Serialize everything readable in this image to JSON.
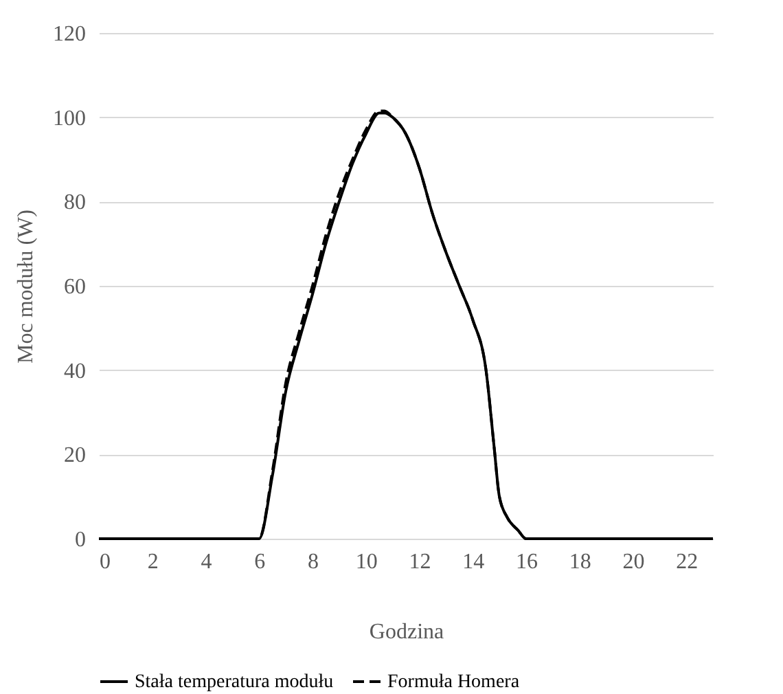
{
  "chart_data": {
    "type": "line",
    "xlabel": "Godzina",
    "ylabel": "Moc modułu (W)",
    "xlim": [
      0,
      23
    ],
    "xticks": [
      0,
      2,
      4,
      6,
      8,
      10,
      12,
      14,
      16,
      18,
      20,
      22
    ],
    "ylim": [
      0,
      120
    ],
    "yticks": [
      0,
      20,
      40,
      60,
      80,
      100,
      120
    ],
    "grid": "y",
    "legend": "bottom",
    "marker": "none",
    "x": [
      0,
      1,
      2,
      3,
      4,
      5,
      5.5,
      5.8,
      6,
      6.5,
      7,
      7.5,
      8,
      8.5,
      9,
      9.5,
      10,
      10.5,
      10.7,
      11,
      11.5,
      12,
      12.5,
      13,
      13.5,
      14,
      14.5,
      14.8,
      15,
      15.3,
      15.7,
      16,
      16.3,
      16.6,
      17,
      18,
      19,
      20,
      21,
      22,
      23
    ],
    "series": [
      {
        "name": "Stała temperatura modułu",
        "color": "#000000",
        "line_style": "solid",
        "values": [
          0,
          0,
          0,
          0,
          0,
          0,
          0,
          0,
          0,
          15,
          35,
          47,
          58,
          70,
          80,
          89,
          96,
          101,
          101,
          100,
          96,
          88,
          77,
          68,
          60,
          52,
          40,
          22,
          10,
          5,
          2,
          0,
          0,
          0,
          0,
          0,
          0,
          0,
          0,
          0,
          0
        ]
      },
      {
        "name": "Formuła Homera",
        "color": "#000000",
        "line_style": "dashed",
        "values": [
          0,
          0,
          0,
          0,
          0,
          0,
          0,
          0,
          0,
          16,
          37,
          49,
          60,
          72,
          82,
          90,
          97,
          101.5,
          101.5,
          100,
          96,
          88,
          77,
          68,
          60,
          52,
          40,
          22,
          10,
          5,
          2,
          0,
          0,
          0,
          0,
          0,
          0,
          0,
          0,
          0,
          0
        ]
      }
    ]
  }
}
